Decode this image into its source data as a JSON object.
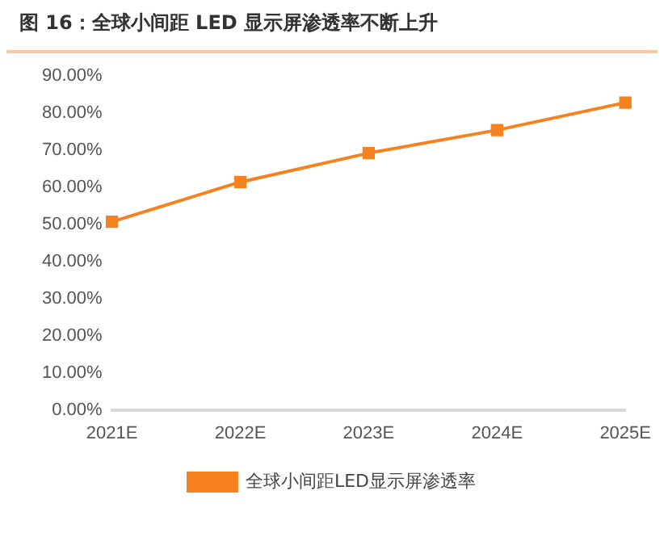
{
  "chart_data": {
    "type": "line",
    "title": "图 16：全球小间距 LED 显示屏渗透率不断上升",
    "categories": [
      "2021E",
      "2022E",
      "2023E",
      "2024E",
      "2025E"
    ],
    "series": [
      {
        "name": "全球小间距LED显示屏渗透率",
        "color": "#f5821f",
        "values": [
          50.7,
          61.4,
          69.2,
          75.4,
          82.8
        ]
      }
    ],
    "ylim": [
      0,
      90
    ],
    "yticks": [
      {
        "value": 0,
        "label": "0.00%"
      },
      {
        "value": 10,
        "label": "10.00%"
      },
      {
        "value": 20,
        "label": "20.00%"
      },
      {
        "value": 30,
        "label": "30.00%"
      },
      {
        "value": 40,
        "label": "40.00%"
      },
      {
        "value": 50,
        "label": "50.00%"
      },
      {
        "value": 60,
        "label": "60.00%"
      },
      {
        "value": 70,
        "label": "70.00%"
      },
      {
        "value": 80,
        "label": "80.00%"
      },
      {
        "value": 90,
        "label": "90.00%"
      }
    ],
    "legend": "bottom",
    "marker": "square",
    "line_style": "solid",
    "grid": false
  }
}
